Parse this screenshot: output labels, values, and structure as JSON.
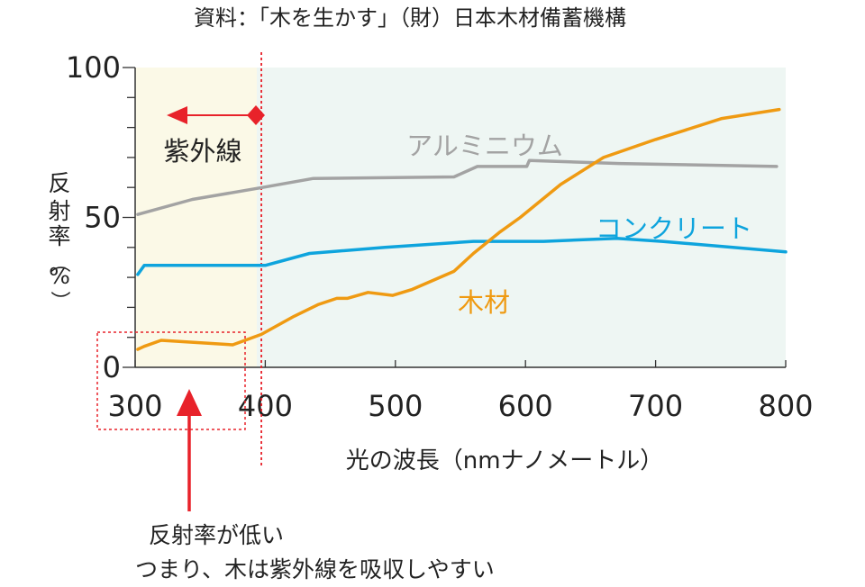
{
  "source": "資料：「木を生かす」（財）日本木材備蓄機構",
  "chart_data": {
    "type": "line",
    "xlabel": "光の波長（nmナノメートル）",
    "ylabel": [
      "反",
      "射",
      "率",
      "（",
      "%",
      "）"
    ],
    "xlim": [
      300,
      800
    ],
    "ylim": [
      0,
      100
    ],
    "x_ticks": [
      300,
      400,
      500,
      600,
      700,
      800
    ],
    "y_ticks": [
      0,
      50,
      100
    ],
    "uv_boundary": 397,
    "series": [
      {
        "name": "アルミニウム",
        "color": "#a3a3a3",
        "points": [
          [
            302,
            51
          ],
          [
            344,
            56
          ],
          [
            398,
            60
          ],
          [
            437,
            63
          ],
          [
            545,
            63.5
          ],
          [
            563,
            67
          ],
          [
            601,
            67
          ],
          [
            603,
            69
          ],
          [
            672,
            68
          ],
          [
            793,
            67
          ]
        ]
      },
      {
        "name": "コンクリート",
        "color": "#0ea4dd",
        "points": [
          [
            302,
            31
          ],
          [
            307,
            34
          ],
          [
            400,
            34
          ],
          [
            434,
            38
          ],
          [
            492,
            40
          ],
          [
            560,
            42
          ],
          [
            614,
            42
          ],
          [
            670,
            43
          ],
          [
            705,
            42
          ],
          [
            800,
            38.5
          ]
        ]
      },
      {
        "name": "木材",
        "color": "#ef9a12",
        "points": [
          [
            302,
            6
          ],
          [
            307,
            7
          ],
          [
            320,
            9
          ],
          [
            375,
            7.5
          ],
          [
            397,
            11
          ],
          [
            422,
            17
          ],
          [
            441,
            21
          ],
          [
            455,
            23
          ],
          [
            463,
            23
          ],
          [
            479,
            25
          ],
          [
            498,
            24
          ],
          [
            513,
            26
          ],
          [
            545,
            32
          ],
          [
            560,
            38
          ],
          [
            580,
            45
          ],
          [
            596,
            50
          ],
          [
            627,
            61
          ],
          [
            660,
            70
          ],
          [
            700,
            76
          ],
          [
            722,
            79
          ],
          [
            751,
            83
          ],
          [
            795,
            86
          ]
        ]
      }
    ],
    "annotations": {
      "uv_label": "紫外線",
      "note_line1": "反射率が低い",
      "note_line2": "つまり、木は紫外線を吸収しやすい"
    }
  }
}
